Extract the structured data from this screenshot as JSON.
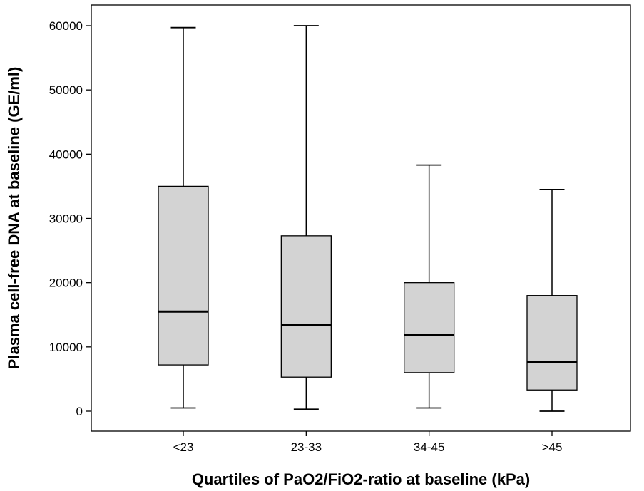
{
  "chart_data": {
    "type": "box",
    "title": "",
    "xlabel": "Quartiles of PaO2/FiO2-ratio at baseline (kPa)",
    "ylabel": "Plasma cell-free DNA at baseline (GE/ml)",
    "ylim": [
      -3200,
      64000
    ],
    "yticks": [
      0,
      10000,
      20000,
      30000,
      40000,
      50000,
      60000
    ],
    "ytick_labels": [
      "0",
      "10000",
      "20000",
      "30000",
      "40000",
      "50000",
      "60000"
    ],
    "grid": false,
    "legend": "none",
    "categories": [
      "<23",
      "23-33",
      "34-45",
      ">45"
    ],
    "boxes": [
      {
        "category": "<23",
        "min": 500,
        "q1": 7200,
        "median": 15500,
        "q3": 35000,
        "max": 59700
      },
      {
        "category": "23-33",
        "min": 300,
        "q1": 5300,
        "median": 13400,
        "q3": 27300,
        "max": 60000
      },
      {
        "category": "34-45",
        "min": 500,
        "q1": 6000,
        "median": 11900,
        "q3": 20000,
        "max": 38300
      },
      {
        "category": ">45",
        "min": 0,
        "q1": 3300,
        "median": 7600,
        "q3": 18000,
        "max": 34500
      }
    ],
    "colors": {
      "box_fill": "#d3d3d3",
      "stroke": "#000000"
    }
  }
}
